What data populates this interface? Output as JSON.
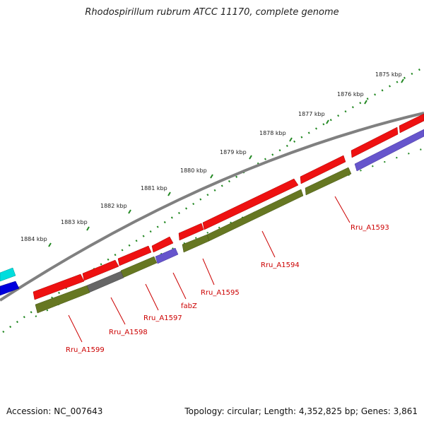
{
  "title": "Rhodospirillum rubrum ATCC 11170, complete genome",
  "footer": {
    "accession": "Accession: NC_007643",
    "summary": "Topology: circular; Length: 4,352,825 bp; Genes: 3,861"
  },
  "scale": {
    "unit": "kbp",
    "labels": [
      "1875 kbp",
      "1876 kbp",
      "1877 kbp",
      "1878 kbp",
      "1879 kbp",
      "1880 kbp",
      "1881 kbp",
      "1882 kbp",
      "1883 kbp",
      "1884 kbp"
    ]
  },
  "colors": {
    "forward_gene": "#ee1111",
    "reverse_gene": "#667722",
    "hypothetical": "#6655cc",
    "grey_gene": "#666666",
    "cyan_gene": "#00dddd",
    "blue_gene": "#0000dd",
    "backbone": "#808080",
    "ticks": "#228822",
    "label": "#cc0000"
  },
  "gene_labels": [
    "Rru_A1593",
    "Rru_A1594",
    "Rru_A1595",
    "fabZ",
    "Rru_A1597",
    "Rru_A1598",
    "Rru_A1599"
  ]
}
